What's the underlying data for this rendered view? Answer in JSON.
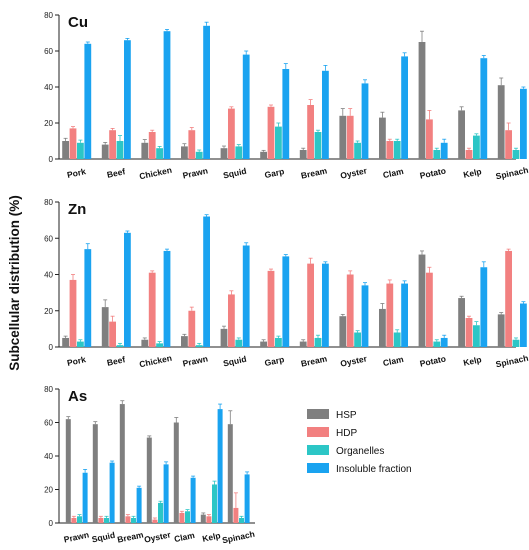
{
  "ylabel": "Subcellular distribution (%)",
  "legend": [
    {
      "label": "HSP",
      "color": "#7f7f7f"
    },
    {
      "label": "HDP",
      "color": "#f28080"
    },
    {
      "label": "Organelles",
      "color": "#2cc6c6"
    },
    {
      "label": "Insoluble fraction",
      "color": "#1aa3f0"
    }
  ],
  "chart_data": [
    {
      "type": "bar",
      "title": "Cu",
      "ylim": [
        0,
        80
      ],
      "yticks": [
        0,
        20,
        40,
        60,
        80
      ],
      "categories": [
        "Pork",
        "Beef",
        "Chicken",
        "Prawn",
        "Squid",
        "Garp",
        "Bream",
        "Oyster",
        "Clam",
        "Potato",
        "Kelp",
        "Spinach"
      ],
      "series": [
        {
          "name": "HSP",
          "values": [
            10,
            8,
            9,
            7,
            6,
            4,
            5,
            24,
            23,
            65,
            27,
            41
          ]
        },
        {
          "name": "HDP",
          "values": [
            17,
            16,
            15,
            16,
            28,
            29,
            30,
            24,
            10,
            22,
            5,
            16
          ]
        },
        {
          "name": "Organelles",
          "values": [
            9,
            10,
            6,
            4,
            7,
            18,
            15,
            9,
            10,
            5,
            13,
            5
          ]
        },
        {
          "name": "Insoluble fraction",
          "values": [
            64,
            66,
            71,
            74,
            58,
            50,
            49,
            42,
            57,
            9,
            56,
            39
          ]
        }
      ],
      "errors": [
        [
          1.5,
          1.2,
          1.8,
          1.5,
          1.2,
          0.8,
          1.0,
          4.0,
          3.0,
          6.0,
          2.0,
          4.0
        ],
        [
          1.0,
          1.0,
          1.0,
          1.5,
          1.0,
          1.0,
          3.0,
          4.0,
          1.0,
          5.0,
          1.0,
          4.0
        ],
        [
          1.5,
          3.0,
          1.0,
          1.0,
          1.0,
          2.0,
          1.0,
          1.0,
          1.0,
          1.0,
          1.0,
          1.0
        ],
        [
          1.0,
          1.0,
          1.0,
          2.0,
          2.0,
          3.0,
          3.0,
          2.0,
          2.0,
          2.0,
          1.5,
          1.0
        ]
      ]
    },
    {
      "type": "bar",
      "title": "Zn",
      "ylim": [
        0,
        80
      ],
      "yticks": [
        0,
        20,
        40,
        60,
        80
      ],
      "categories": [
        "Pork",
        "Beef",
        "Chicken",
        "Prawn",
        "Squid",
        "Garp",
        "Bream",
        "Oyster",
        "Clam",
        "Potato",
        "Kelp",
        "Spinach"
      ],
      "series": [
        {
          "name": "HSP",
          "values": [
            5,
            22,
            4,
            6,
            10,
            3,
            3,
            17,
            21,
            51,
            27,
            18
          ]
        },
        {
          "name": "HDP",
          "values": [
            37,
            14,
            41,
            20,
            29,
            42,
            46,
            40,
            35,
            41,
            16,
            53
          ]
        },
        {
          "name": "Organelles",
          "values": [
            3,
            1,
            2,
            1,
            4,
            5,
            5,
            8,
            8,
            3,
            12,
            4
          ]
        },
        {
          "name": "Insoluble fraction",
          "values": [
            54,
            63,
            53,
            72,
            56,
            50,
            46,
            34,
            35,
            5,
            44,
            24
          ]
        }
      ],
      "errors": [
        [
          1.0,
          4.0,
          1.0,
          1.0,
          1.5,
          1.0,
          1.0,
          1.0,
          3.0,
          2.0,
          1.0,
          1.0
        ],
        [
          3.0,
          3.0,
          1.0,
          2.0,
          2.0,
          1.0,
          3.0,
          2.0,
          2.0,
          3.0,
          1.0,
          1.0
        ],
        [
          1.0,
          1.0,
          1.0,
          1.0,
          1.0,
          1.0,
          1.5,
          1.0,
          1.5,
          1.0,
          2.0,
          1.0
        ],
        [
          3.0,
          1.0,
          1.0,
          1.0,
          1.5,
          1.0,
          1.0,
          1.5,
          1.5,
          1.5,
          3.0,
          1.0
        ]
      ]
    },
    {
      "type": "bar",
      "title": "As",
      "ylim": [
        0,
        80
      ],
      "yticks": [
        0,
        20,
        40,
        60,
        80
      ],
      "categories": [
        "Prawn",
        "Squid",
        "Bream",
        "Oyster",
        "Clam",
        "Kelp",
        "Spinach"
      ],
      "series": [
        {
          "name": "HSP",
          "values": [
            62,
            59,
            71,
            51,
            60,
            5,
            59
          ]
        },
        {
          "name": "HDP",
          "values": [
            3,
            3,
            4,
            2,
            6,
            4,
            9
          ]
        },
        {
          "name": "Organelles",
          "values": [
            4,
            3,
            3,
            12,
            7,
            23,
            3
          ]
        },
        {
          "name": "Insoluble fraction",
          "values": [
            30,
            36,
            21,
            35,
            27,
            68,
            29
          ]
        }
      ],
      "errors": [
        [
          1.5,
          1.5,
          2.0,
          1.0,
          3.0,
          1.0,
          8.0
        ],
        [
          1.0,
          1.0,
          1.0,
          1.0,
          1.0,
          1.0,
          9.0
        ],
        [
          1.0,
          1.0,
          1.0,
          1.0,
          1.0,
          2.0,
          1.0
        ],
        [
          2.0,
          1.0,
          1.0,
          1.5,
          1.0,
          3.0,
          1.5
        ]
      ]
    }
  ]
}
